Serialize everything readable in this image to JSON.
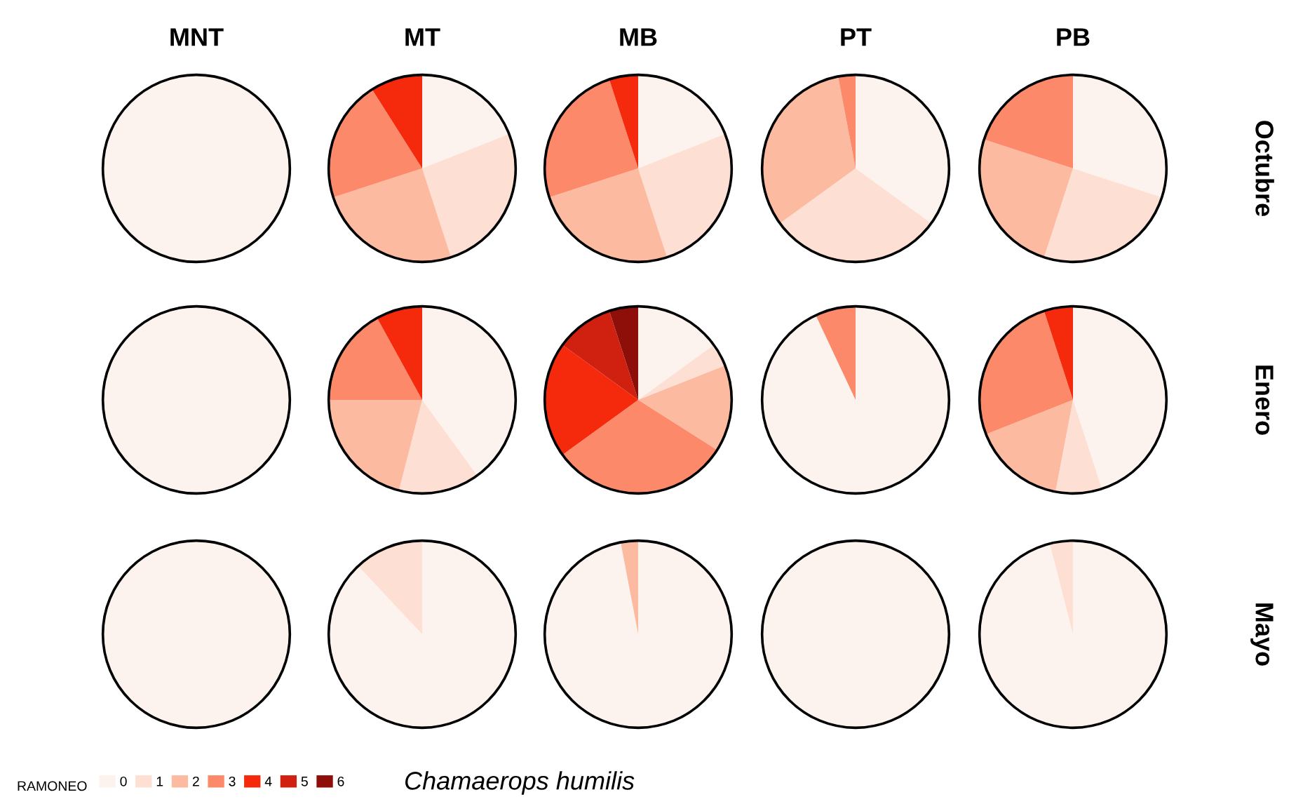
{
  "chart_data": [
    {
      "type": "pie",
      "title": "MNT",
      "categories": [
        "0",
        "1",
        "2",
        "3",
        "4",
        "5",
        "6"
      ],
      "values": [
        100,
        0,
        0,
        0,
        0,
        0,
        0
      ],
      "colors": [
        "#fdf3ee",
        "#fde0d3",
        "#fcbba1",
        "#fc8a6a",
        "#f52a0c",
        "#d0200f",
        "#8e0f0a"
      ],
      "legend": "bottom",
      "legend_title": "RAMONEO",
      "annotations": [
        "Chamaerops humilis"
      ]
    },
    {
      "type": "pie",
      "title": "MT",
      "values": [
        19,
        26,
        25,
        21,
        9,
        0,
        0
      ]
    },
    {
      "type": "pie",
      "title": "MB",
      "values": [
        19,
        26,
        25,
        25,
        5,
        0,
        0
      ]
    },
    {
      "type": "pie",
      "title": "PT",
      "values": [
        35,
        30,
        32,
        3,
        0,
        0,
        0
      ]
    },
    {
      "type": "pie",
      "title": "PB",
      "ylabel": "Octubre",
      "values": [
        30,
        25,
        25,
        20,
        0,
        0,
        0
      ]
    },
    {
      "type": "pie",
      "values": [
        100,
        0,
        0,
        0,
        0,
        0,
        0
      ]
    },
    {
      "type": "pie",
      "values": [
        40,
        14,
        21,
        17,
        8,
        0,
        0
      ]
    },
    {
      "type": "pie",
      "values": [
        15,
        4,
        15,
        31,
        20,
        10,
        5
      ]
    },
    {
      "type": "pie",
      "values": [
        93,
        0,
        0,
        7,
        0,
        0,
        0
      ]
    },
    {
      "type": "pie",
      "ylabel": "Enero",
      "values": [
        45,
        8,
        16,
        26,
        5,
        0,
        0
      ]
    },
    {
      "type": "pie",
      "values": [
        100,
        0,
        0,
        0,
        0,
        0,
        0
      ]
    },
    {
      "type": "pie",
      "values": [
        88,
        12,
        0,
        0,
        0,
        0,
        0
      ]
    },
    {
      "type": "pie",
      "values": [
        97,
        0,
        3,
        0,
        0,
        0,
        0
      ]
    },
    {
      "type": "pie",
      "values": [
        100,
        0,
        0,
        0,
        0,
        0,
        0
      ]
    },
    {
      "type": "pie",
      "ylabel": "Mayo",
      "values": [
        96,
        4,
        0,
        0,
        0,
        0,
        0
      ]
    }
  ]
}
